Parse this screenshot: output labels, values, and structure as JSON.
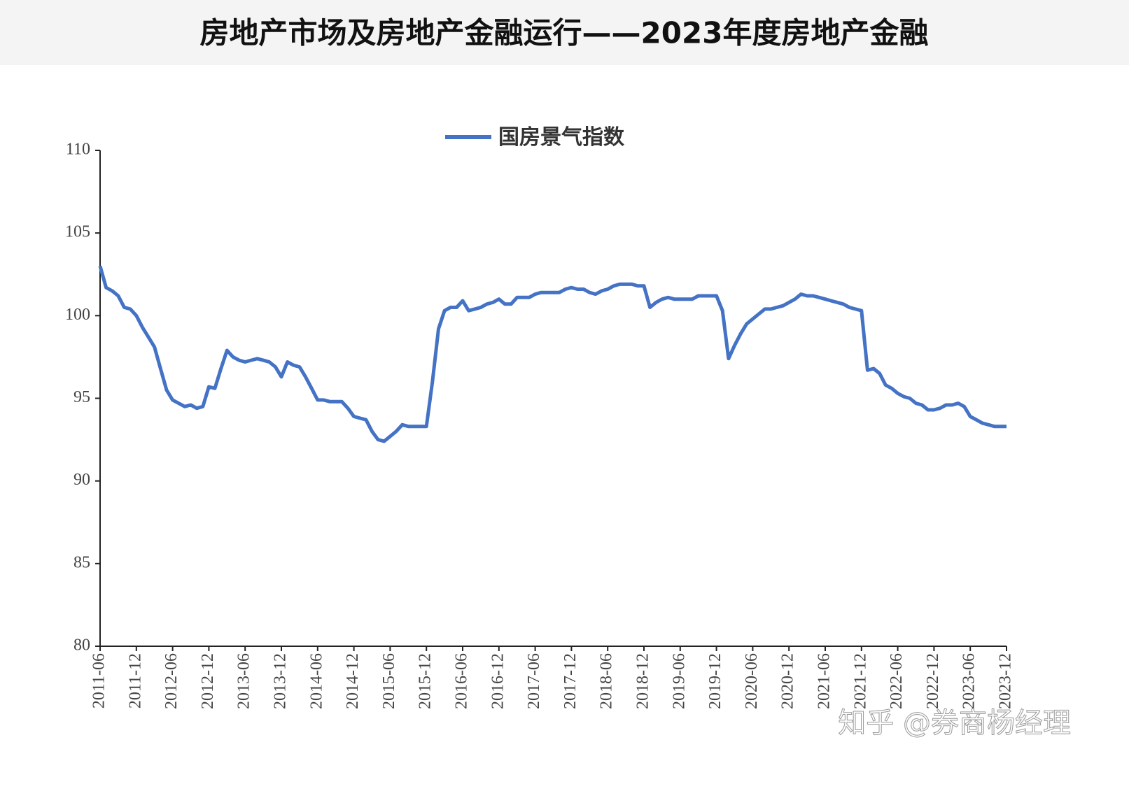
{
  "header": {
    "title": "房地产市场及房地产金融运行——2023年度房地产金融"
  },
  "watermark": "知乎 @券商杨经理",
  "chart_data": {
    "type": "line",
    "categories": [
      "2011-06",
      null,
      null,
      null,
      null,
      null,
      "2011-12",
      null,
      null,
      null,
      null,
      null,
      "2012-06",
      null,
      null,
      null,
      null,
      null,
      "2012-12",
      null,
      null,
      null,
      null,
      null,
      "2013-06",
      null,
      null,
      null,
      null,
      null,
      "2013-12",
      null,
      null,
      null,
      null,
      null,
      "2014-06",
      null,
      null,
      null,
      null,
      null,
      "2014-12",
      null,
      null,
      null,
      null,
      null,
      "2015-06",
      null,
      null,
      null,
      null,
      null,
      "2015-12",
      null,
      null,
      null,
      null,
      null,
      "2016-06",
      null,
      null,
      null,
      null,
      null,
      "2016-12",
      null,
      null,
      null,
      null,
      null,
      "2017-06",
      null,
      null,
      null,
      null,
      null,
      "2017-12",
      null,
      null,
      null,
      null,
      null,
      "2018-06",
      null,
      null,
      null,
      null,
      null,
      "2018-12",
      null,
      null,
      null,
      null,
      null,
      "2019-06",
      null,
      null,
      null,
      null,
      null,
      "2019-12",
      null,
      null,
      null,
      null,
      null,
      "2020-06",
      null,
      null,
      null,
      null,
      null,
      "2020-12",
      null,
      null,
      null,
      null,
      null,
      "2021-06",
      null,
      null,
      null,
      null,
      null,
      "2021-12",
      null,
      null,
      null,
      null,
      null,
      "2022-06",
      null,
      null,
      null,
      null,
      null,
      "2022-12",
      null,
      null,
      null,
      null,
      null,
      "2023-06",
      null,
      null,
      null,
      null,
      null,
      "2023-12"
    ],
    "series": [
      {
        "name": "国房景气指数",
        "color": "#4472c4",
        "values": [
          103.0,
          101.7,
          101.5,
          101.2,
          100.5,
          100.4,
          100.0,
          99.3,
          98.7,
          98.1,
          96.8,
          95.5,
          94.9,
          94.7,
          94.5,
          94.6,
          94.4,
          94.5,
          95.7,
          95.6,
          96.8,
          97.9,
          97.5,
          97.3,
          97.2,
          97.3,
          97.4,
          97.3,
          97.2,
          96.9,
          96.3,
          97.2,
          97.0,
          96.9,
          96.3,
          95.6,
          94.9,
          94.9,
          94.8,
          94.8,
          94.8,
          94.4,
          93.9,
          93.8,
          93.7,
          93.0,
          92.5,
          92.4,
          92.7,
          93.0,
          93.4,
          93.3,
          93.3,
          93.3,
          93.3,
          96.0,
          99.2,
          100.3,
          100.5,
          100.5,
          100.9,
          100.3,
          100.4,
          100.5,
          100.7,
          100.8,
          101.0,
          100.7,
          100.7,
          101.1,
          101.1,
          101.1,
          101.3,
          101.4,
          101.4,
          101.4,
          101.4,
          101.6,
          101.7,
          101.6,
          101.6,
          101.4,
          101.3,
          101.5,
          101.6,
          101.8,
          101.9,
          101.9,
          101.9,
          101.8,
          101.8,
          100.5,
          100.8,
          101.0,
          101.1,
          101.0,
          101.0,
          101.0,
          101.0,
          101.2,
          101.2,
          101.2,
          101.2,
          100.3,
          97.4,
          98.2,
          98.9,
          99.5,
          99.8,
          100.1,
          100.4,
          100.4,
          100.5,
          100.6,
          100.8,
          101.0,
          101.3,
          101.2,
          101.2,
          101.1,
          101.0,
          100.9,
          100.8,
          100.7,
          100.5,
          100.4,
          100.3,
          96.7,
          96.8,
          96.5,
          95.8,
          95.6,
          95.3,
          95.1,
          95.0,
          94.7,
          94.6,
          94.3,
          94.3,
          94.4,
          94.6,
          94.6,
          94.7,
          94.5,
          93.9,
          93.7,
          93.5,
          93.4,
          93.3,
          93.3,
          93.3
        ]
      }
    ],
    "ylim": [
      80,
      110
    ],
    "yticks": [
      80,
      85,
      90,
      95,
      100,
      105,
      110
    ],
    "legend": "top"
  }
}
